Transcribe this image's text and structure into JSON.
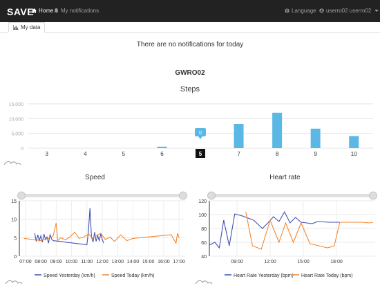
{
  "nav": {
    "brand": "SAVE",
    "home": "Home",
    "notifications": "My notifications",
    "language": "Language",
    "user": "userro02 userro02"
  },
  "tabs": [
    {
      "label": "My data"
    }
  ],
  "notice": "There are no notifications for today",
  "device": "GWRO02",
  "colors": {
    "navbar": "#222222",
    "bar": "#5bb8e4",
    "yesterday": "#3f51b5",
    "today": "#f5862f"
  },
  "chart_data": [
    {
      "type": "bar",
      "title": "Steps",
      "categories": [
        "3",
        "4",
        "5",
        "6",
        "5",
        "7",
        "8",
        "9",
        "10"
      ],
      "values": [
        0,
        0,
        0,
        500,
        0,
        8200,
        12000,
        6600,
        4100
      ],
      "ylim": [
        0,
        15000
      ],
      "yticks": [
        "0",
        "5,000",
        "10,000",
        "15,000"
      ],
      "highlight": {
        "category_index": 4,
        "value_label": "0"
      },
      "grid": true
    },
    {
      "type": "line",
      "title": "Speed",
      "ylim": [
        0,
        15
      ],
      "yticks": [
        "0",
        "5",
        "10",
        "15"
      ],
      "xticks": [
        "07:00",
        "08:00",
        "09:00",
        "10:00",
        "11:00",
        "12:00",
        "13:00",
        "14:00",
        "15:00",
        "16:00",
        "17:00"
      ],
      "series": [
        {
          "name": "Speed Yesterday (km/h)",
          "color": "#3f51b5",
          "x": [
            7.6,
            7.7,
            7.8,
            7.9,
            8.0,
            8.1,
            8.2,
            8.3,
            8.4,
            8.5,
            8.6,
            8.7,
            8.8,
            11.0,
            11.1,
            11.2,
            11.3,
            11.4,
            11.5,
            11.6,
            11.7,
            11.8,
            11.9,
            12.0,
            12.1
          ],
          "y": [
            6.2,
            4.0,
            5.8,
            4.2,
            5.5,
            3.8,
            6.0,
            4.5,
            5.2,
            3.5,
            5.8,
            4.6,
            4.2,
            3.1,
            6.8,
            13.0,
            5.2,
            3.8,
            6.5,
            4.0,
            5.6,
            4.2,
            6.0,
            4.5,
            3.5
          ]
        },
        {
          "name": "Speed Today (km/h)",
          "color": "#f5862f",
          "x": [
            6.9,
            7.5,
            8.0,
            8.5,
            8.8,
            9.0,
            9.1,
            9.3,
            9.6,
            9.9,
            10.2,
            10.5,
            10.8,
            11.1,
            11.4,
            11.6,
            11.9,
            12.2,
            12.5,
            12.8,
            13.2,
            13.6,
            14.0,
            14.5,
            15.0,
            15.5,
            16.0,
            16.5,
            16.8,
            16.9,
            17.0
          ],
          "y": [
            4.8,
            4.5,
            4.2,
            4.8,
            5.5,
            9.0,
            4.2,
            5.0,
            4.4,
            5.2,
            6.5,
            4.8,
            5.2,
            6.0,
            4.8,
            5.5,
            6.2,
            4.5,
            5.2,
            4.0,
            5.8,
            4.2,
            4.8,
            5.0,
            5.2,
            5.4,
            5.6,
            5.8,
            3.5,
            6.2,
            5.0
          ]
        }
      ],
      "legend": "bottom"
    },
    {
      "type": "line",
      "title": "Heart rate",
      "ylim": [
        40,
        120
      ],
      "yticks": [
        "40",
        "60",
        "80",
        "100",
        "120"
      ],
      "xticks": [
        "09:00",
        "12:00",
        "15:00",
        "18:00"
      ],
      "series": [
        {
          "name": "Heart Rate Yesterday (bpm)",
          "color": "#3f51b5",
          "x": [
            6.5,
            7.0,
            7.4,
            7.8,
            8.3,
            8.8,
            9.5,
            10.5,
            11.3,
            11.8,
            12.3,
            12.8,
            13.3,
            13.8,
            14.3,
            14.8,
            15.3,
            15.8,
            16.3,
            17.3,
            18.3
          ],
          "y": [
            56,
            60,
            52,
            92,
            55,
            101,
            98,
            92,
            80,
            88,
            97,
            90,
            104,
            88,
            96,
            89,
            88,
            87,
            90,
            89,
            89
          ]
        },
        {
          "name": "Heart Rate Today (bpm)",
          "color": "#f5862f",
          "x": [
            9.8,
            10.4,
            11.2,
            12.0,
            12.8,
            13.4,
            14.1,
            14.8,
            15.6,
            16.4,
            17.2,
            17.8,
            18.3,
            19.2,
            20.3,
            21.0,
            21.3
          ],
          "y": [
            104,
            55,
            50,
            92,
            60,
            88,
            60,
            88,
            58,
            55,
            52,
            55,
            89,
            89,
            89,
            88,
            89
          ]
        }
      ],
      "legend": "bottom"
    }
  ]
}
